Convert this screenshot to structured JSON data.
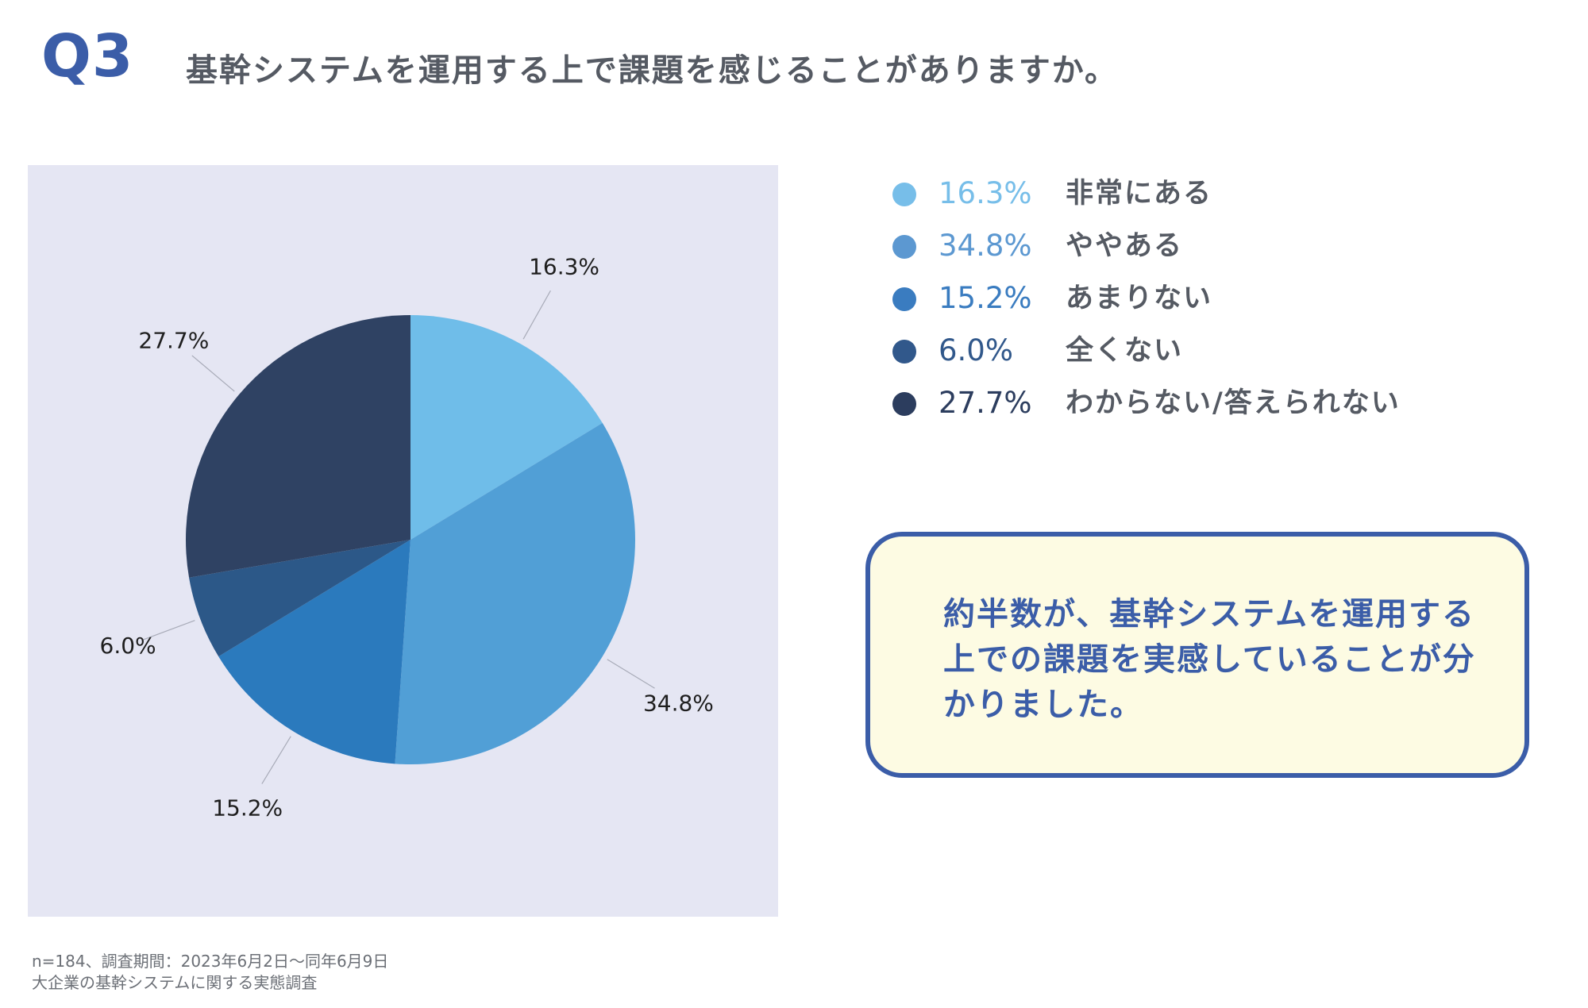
{
  "header": {
    "question_number": "Q3",
    "question_text": "基幹システムを運用する上で課題を感じることがありますか。"
  },
  "chart_data": {
    "type": "pie",
    "title": "基幹システムを運用する上で課題を感じることがありますか。",
    "categories": [
      "非常にある",
      "ややある",
      "あまりない",
      "全くない",
      "わからない/答えられない"
    ],
    "values": [
      16.3,
      34.8,
      15.2,
      6.0,
      27.7
    ],
    "value_labels": [
      "16.3%",
      "34.8%",
      "15.2%",
      "6.0%",
      "27.7%"
    ],
    "colors": [
      "#6fbde9",
      "#519fd6",
      "#2b7abd",
      "#2c5888",
      "#2f4263"
    ],
    "legend_colors": [
      "#77bee9",
      "#5c98d1",
      "#3a7cc0",
      "#31588b",
      "#2c3d5e"
    ],
    "start_angle_deg": 0,
    "direction": "clockwise",
    "legend_position": "right"
  },
  "callout": {
    "text": "約半数が、基幹システムを運用する上での課題を実感していることが分かりました。"
  },
  "footnote": {
    "line1": "n=184、調査期間：2023年6月2日〜同年6月9日",
    "line2": "大企業の基幹システムに関する実態調査"
  }
}
